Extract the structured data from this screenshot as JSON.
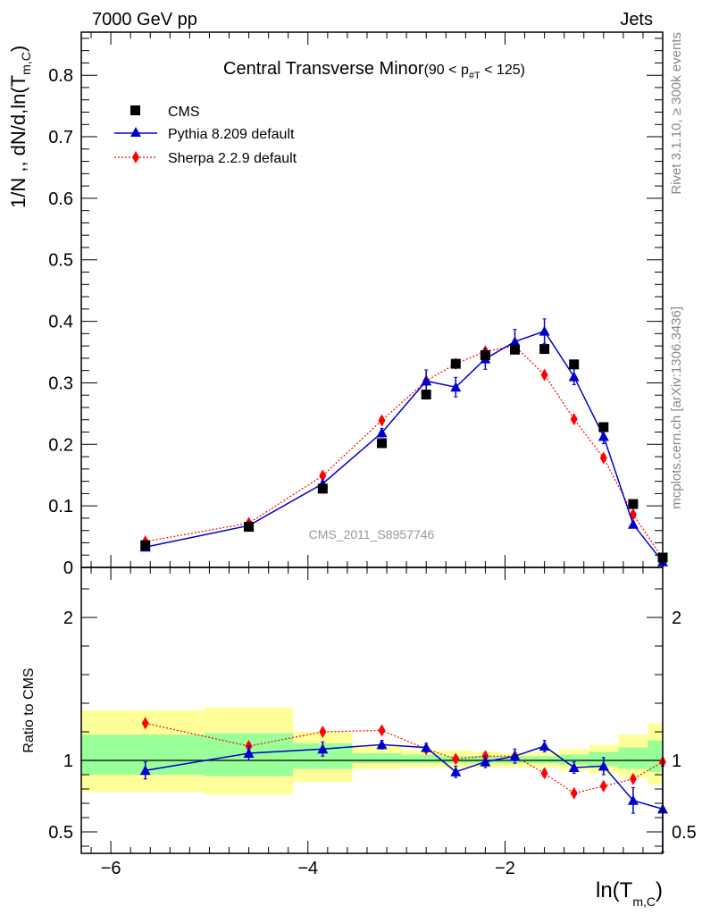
{
  "header": {
    "left": "7000 GeV pp",
    "right": "Jets",
    "side_rivet": "Rivet 3.1.10, ≥ 300k events",
    "side_mcplots": "mcplots.cern.ch [arXiv:1306.3436]",
    "watermark": "CMS_2011_S8957746"
  },
  "chart_data": {
    "type": "line",
    "title_main": "Central Transverse Minor",
    "title_cut_pre": "(90 < p",
    "title_cut_sub": "#T",
    "title_cut_post": " < 125)",
    "ylabel_main": "1/N ,, dN/d,ln(T",
    "ylabel_sub": "m,C",
    "ylabel_close": ")",
    "ratio_ylabel": "Ratio to CMS",
    "xlabel_main": "ln(T",
    "xlabel_sub": "m,C",
    "xlabel_close": ")",
    "xlim": [
      -6.3,
      -0.4
    ],
    "ylim_main": [
      0,
      0.87
    ],
    "ylim_ratio": [
      0.35,
      2.35
    ],
    "x_ticks": [
      -6,
      -4,
      -2
    ],
    "x_tick_labels": [
      "−6",
      "−4",
      "−2"
    ],
    "y_ticks_main": [
      0,
      0.1,
      0.2,
      0.3,
      0.4,
      0.5,
      0.6,
      0.7,
      0.8
    ],
    "y_tick_labels_main": [
      "0",
      "0.1",
      "0.2",
      "0.3",
      "0.4",
      "0.5",
      "0.6",
      "0.7",
      "0.8"
    ],
    "y_ticks_ratio": [
      0.5,
      1,
      2
    ],
    "y_tick_labels_ratio": [
      "0.5",
      "1",
      "2"
    ],
    "x": [
      -5.65,
      -4.6,
      -3.85,
      -3.25,
      -2.8,
      -2.5,
      -2.2,
      -1.9,
      -1.6,
      -1.3,
      -1.0,
      -0.7,
      -0.4
    ],
    "band_edges": [
      -6.3,
      -5.05,
      -4.15,
      -3.55,
      -3.05,
      -2.65,
      -2.35,
      -2.05,
      -1.75,
      -1.45,
      -1.15,
      -0.85,
      -0.55,
      -0.25
    ],
    "band_yellow": [
      [
        0.78,
        1.35
      ],
      [
        0.76,
        1.37
      ],
      [
        0.85,
        1.2
      ],
      [
        0.94,
        1.1
      ],
      [
        0.95,
        1.07
      ],
      [
        0.95,
        1.07
      ],
      [
        0.95,
        1.06
      ],
      [
        0.95,
        1.05
      ],
      [
        0.95,
        1.06
      ],
      [
        0.93,
        1.08
      ],
      [
        0.91,
        1.11
      ],
      [
        0.88,
        1.18
      ],
      [
        0.83,
        1.26
      ]
    ],
    "band_green": [
      [
        0.9,
        1.18
      ],
      [
        0.89,
        1.19
      ],
      [
        0.94,
        1.12
      ],
      [
        0.98,
        1.05
      ],
      [
        0.98,
        1.04
      ],
      [
        0.98,
        1.03
      ],
      [
        0.98,
        1.03
      ],
      [
        0.98,
        1.03
      ],
      [
        0.98,
        1.03
      ],
      [
        0.97,
        1.04
      ],
      [
        0.96,
        1.06
      ],
      [
        0.94,
        1.09
      ],
      [
        0.92,
        1.14
      ]
    ],
    "series": [
      {
        "name": "CMS",
        "color": "#000000",
        "marker": "square",
        "values": [
          0.036,
          0.066,
          0.128,
          0.202,
          0.281,
          0.331,
          0.345,
          0.354,
          0.355,
          0.33,
          0.228,
          0.103,
          0.016
        ],
        "errors": [
          0,
          0,
          0,
          0,
          0,
          0,
          0,
          0,
          0,
          0,
          0,
          0,
          0
        ]
      },
      {
        "name": "Pythia 8.209 default",
        "color": "#0000cc",
        "marker": "triangle",
        "line": "solid",
        "values": [
          0.033,
          0.068,
          0.136,
          0.219,
          0.303,
          0.293,
          0.339,
          0.367,
          0.384,
          0.31,
          0.213,
          0.07,
          0.009
        ],
        "errors": [
          0.002,
          0.003,
          0.004,
          0.007,
          0.018,
          0.016,
          0.017,
          0.02,
          0.02,
          0.013,
          0.012,
          0.005,
          0.004
        ],
        "ratio": [
          0.93,
          1.05,
          1.08,
          1.11,
          1.09,
          0.92,
          0.99,
          1.03,
          1.1,
          0.95,
          0.96,
          0.72,
          0.66
        ],
        "ratio_errors": [
          0.06,
          0.05,
          0.05,
          0.03,
          0.03,
          0.04,
          0.04,
          0.05,
          0.04,
          0.04,
          0.06,
          0.09,
          0.3
        ]
      },
      {
        "name": "Sherpa 2.2.9 default",
        "color": "#ff0000",
        "marker": "diamond",
        "line": "dotted",
        "values": [
          0.042,
          0.072,
          0.149,
          0.239,
          0.303,
          0.331,
          0.351,
          0.36,
          0.313,
          0.241,
          0.178,
          0.086,
          0.015
        ],
        "errors": [
          0,
          0,
          0,
          0,
          0,
          0,
          0,
          0,
          0,
          0,
          0,
          0,
          0
        ],
        "ratio": [
          1.26,
          1.1,
          1.2,
          1.21,
          1.08,
          1.01,
          1.03,
          1.03,
          0.91,
          0.77,
          0.82,
          0.87,
          0.99
        ],
        "ratio_errors": [
          0,
          0,
          0,
          0,
          0,
          0,
          0,
          0,
          0,
          0,
          0,
          0,
          0
        ]
      }
    ]
  }
}
